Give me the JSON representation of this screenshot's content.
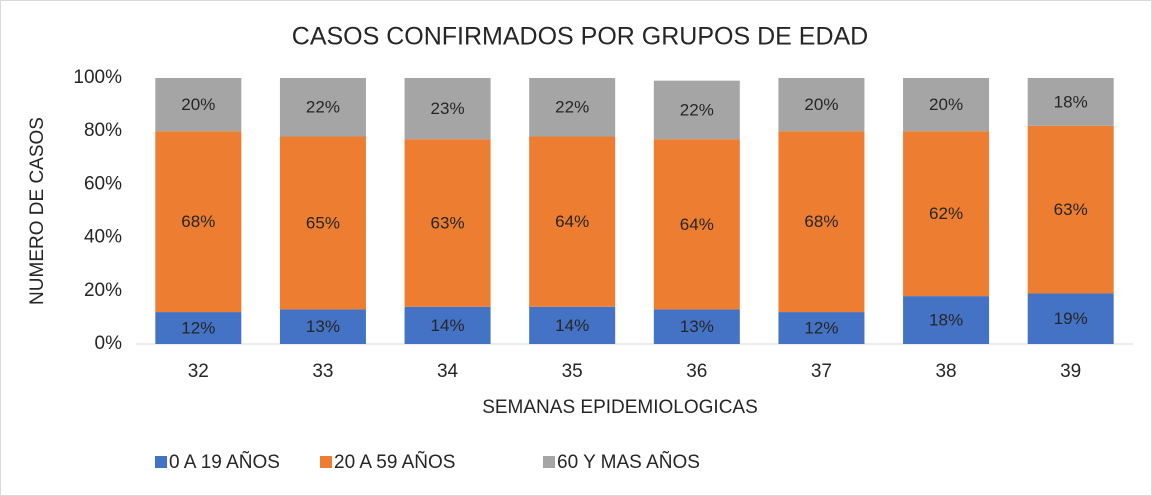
{
  "chart_data": {
    "type": "stacked_bar",
    "title": "CASOS CONFIRMADOS POR GRUPOS DE EDAD",
    "x_label": "SEMANAS EPIDEMIOLOGICAS",
    "y_label": "NUMERO DE CASOS",
    "categories": [
      "32",
      "33",
      "34",
      "35",
      "36",
      "37",
      "38",
      "39"
    ],
    "series": [
      {
        "name": "0 A 19 AÑOS",
        "color": "#4472c4",
        "values": [
          12,
          13,
          14,
          14,
          13,
          12,
          18,
          19
        ],
        "value_labels": [
          "12%",
          "13%",
          "14%",
          "14%",
          "13%",
          "12%",
          "18%",
          "19%"
        ]
      },
      {
        "name": "20 A 59 AÑOS",
        "color": "#ed7d31",
        "values": [
          68,
          65,
          63,
          64,
          64,
          68,
          62,
          63
        ],
        "value_labels": [
          "68%",
          "65%",
          "63%",
          "64%",
          "64%",
          "68%",
          "62%",
          "63%"
        ]
      },
      {
        "name": "60 Y MAS AÑOS",
        "color": "#a5a5a5",
        "values": [
          20,
          22,
          23,
          22,
          22,
          20,
          20,
          18
        ],
        "value_labels": [
          "20%",
          "22%",
          "23%",
          "22%",
          "22%",
          "20%",
          "20%",
          "18%"
        ]
      }
    ],
    "ylim": [
      0,
      100
    ],
    "yticks": [
      {
        "value": 0,
        "label": "0%"
      },
      {
        "value": 20,
        "label": "20%"
      },
      {
        "value": 40,
        "label": "40%"
      },
      {
        "value": 60,
        "label": "60%"
      },
      {
        "value": 80,
        "label": "80%"
      },
      {
        "value": 100,
        "label": "100%"
      }
    ],
    "grid": false,
    "legend": "bottom"
  }
}
